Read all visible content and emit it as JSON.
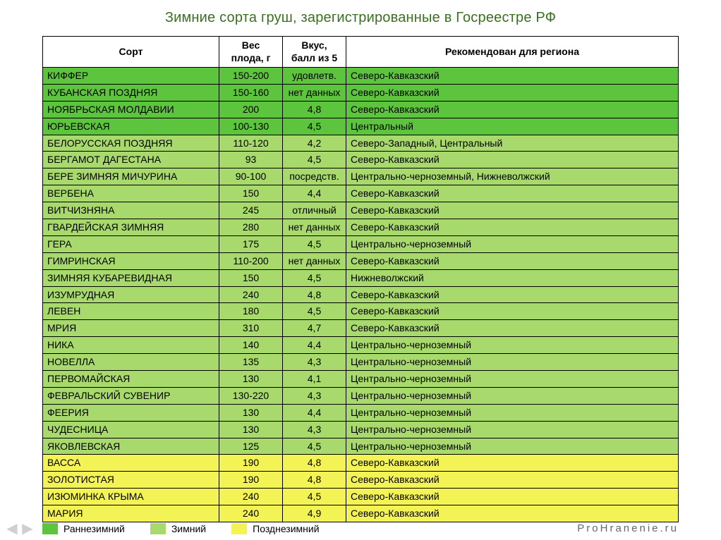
{
  "title": "Зимние сорта груш, зарегистрированные в Госреестре РФ",
  "columns": {
    "sort": "Сорт",
    "weight": "Вес плода, г",
    "taste": "Вкус, балл из 5",
    "region": "Рекомендован для региона"
  },
  "colors": {
    "early": "#5dc43d",
    "winter": "#a7d96c",
    "late": "#f4f356",
    "border": "#000000",
    "title": "#3a7020",
    "site": "#666666"
  },
  "legend": {
    "early": "Раннезимний",
    "winter": "Зимний",
    "late": "Позднезимний"
  },
  "site": "ProHranenie.ru",
  "rows": [
    {
      "sort": "КИФФЕР",
      "weight": "150-200",
      "taste": "удовлетв.",
      "region": "Северо-Кавказский",
      "cat": "early"
    },
    {
      "sort": "КУБАНСКАЯ ПОЗДНЯЯ",
      "weight": "150-160",
      "taste": "нет данных",
      "region": "Северо-Кавказский",
      "cat": "early"
    },
    {
      "sort": "НОЯБРЬСКАЯ МОЛДАВИИ",
      "weight": "200",
      "taste": "4,8",
      "region": "Северо-Кавказский",
      "cat": "early"
    },
    {
      "sort": "ЮРЬЕВСКАЯ",
      "weight": "100-130",
      "taste": "4,5",
      "region": "Центральный",
      "cat": "early"
    },
    {
      "sort": "БЕЛОРУССКАЯ ПОЗДНЯЯ",
      "weight": "110-120",
      "taste": "4,2",
      "region": "Северо-Западный, Центральный",
      "cat": "winter"
    },
    {
      "sort": "БЕРГАМОТ ДАГЕСТАНА",
      "weight": "93",
      "taste": "4,5",
      "region": "Северо-Кавказский",
      "cat": "winter"
    },
    {
      "sort": "БЕРЕ ЗИМНЯЯ МИЧУРИНА",
      "weight": "90-100",
      "taste": "посредств.",
      "region": "Центрально-черноземный, Нижневолжский",
      "cat": "winter"
    },
    {
      "sort": "ВЕРБЕНА",
      "weight": "150",
      "taste": "4,4",
      "region": "Северо-Кавказский",
      "cat": "winter"
    },
    {
      "sort": "ВИТЧИЗНЯНА",
      "weight": "245",
      "taste": "отличный",
      "region": "Северо-Кавказский",
      "cat": "winter"
    },
    {
      "sort": "ГВАРДЕЙСКАЯ ЗИМНЯЯ",
      "weight": "280",
      "taste": "нет данных",
      "region": "Северо-Кавказский",
      "cat": "winter"
    },
    {
      "sort": "ГЕРА",
      "weight": "175",
      "taste": "4,5",
      "region": "Центрально-черноземный",
      "cat": "winter"
    },
    {
      "sort": "ГИМРИНСКАЯ",
      "weight": "110-200",
      "taste": "нет данных",
      "region": "Северо-Кавказский",
      "cat": "winter"
    },
    {
      "sort": "ЗИМНЯЯ КУБАРЕВИДНАЯ",
      "weight": "150",
      "taste": "4,5",
      "region": "Нижневолжский",
      "cat": "winter"
    },
    {
      "sort": "ИЗУМРУДНАЯ",
      "weight": "240",
      "taste": "4,8",
      "region": "Северо-Кавказский",
      "cat": "winter"
    },
    {
      "sort": "ЛЕВЕН",
      "weight": "180",
      "taste": "4,5",
      "region": "Северо-Кавказский",
      "cat": "winter"
    },
    {
      "sort": "МРИЯ",
      "weight": "310",
      "taste": "4,7",
      "region": "Северо-Кавказский",
      "cat": "winter"
    },
    {
      "sort": "НИКА",
      "weight": "140",
      "taste": "4,4",
      "region": "Центрально-черноземный",
      "cat": "winter"
    },
    {
      "sort": "НОВЕЛЛА",
      "weight": "135",
      "taste": "4,3",
      "region": "Центрально-черноземный",
      "cat": "winter"
    },
    {
      "sort": "ПЕРВОМАЙСКАЯ",
      "weight": "130",
      "taste": "4,1",
      "region": "Центрально-черноземный",
      "cat": "winter"
    },
    {
      "sort": "ФЕВРАЛЬСКИЙ СУВЕНИР",
      "weight": "130-220",
      "taste": "4,3",
      "region": "Центрально-черноземный",
      "cat": "winter"
    },
    {
      "sort": "ФЕЕРИЯ",
      "weight": "130",
      "taste": "4,4",
      "region": "Центрально-черноземный",
      "cat": "winter"
    },
    {
      "sort": "ЧУДЕСНИЦА",
      "weight": "130",
      "taste": "4,3",
      "region": "Центрально-черноземный",
      "cat": "winter"
    },
    {
      "sort": "ЯКОВЛЕВСКАЯ",
      "weight": "125",
      "taste": "4,5",
      "region": "Центрально-черноземный",
      "cat": "winter"
    },
    {
      "sort": "ВАССА",
      "weight": "190",
      "taste": "4,8",
      "region": "Северо-Кавказский",
      "cat": "late"
    },
    {
      "sort": "ЗОЛОТИСТАЯ",
      "weight": "190",
      "taste": "4,8",
      "region": "Северо-Кавказский",
      "cat": "late"
    },
    {
      "sort": "ИЗЮМИНКА КРЫМА",
      "weight": "240",
      "taste": "4,5",
      "region": "Северо-Кавказский",
      "cat": "late"
    },
    {
      "sort": "МАРИЯ",
      "weight": "240",
      "taste": "4,9",
      "region": "Северо-Кавказский",
      "cat": "late"
    }
  ]
}
